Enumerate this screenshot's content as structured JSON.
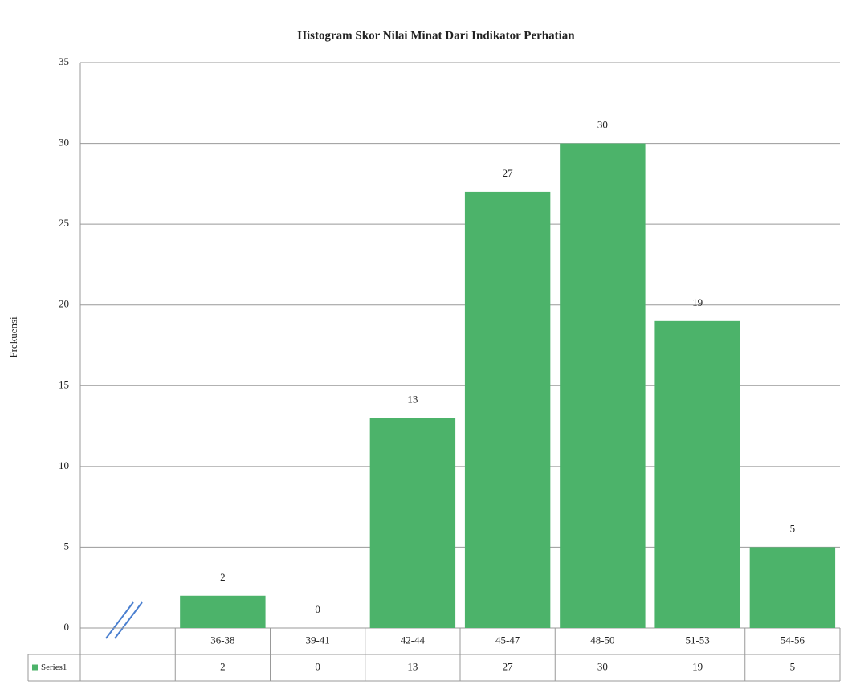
{
  "chart_data": {
    "type": "bar",
    "title": "Histogram Skor Nilai Minat Dari Indikator Perhatian",
    "y_label": "Frekuensi",
    "categories": [
      null,
      "36-38",
      "39-41",
      "42-44",
      "45-47",
      "48-50",
      "51-53",
      "54-56"
    ],
    "series": [
      {
        "name": "Series1",
        "color": "#4cb36a",
        "values": [
          null,
          2,
          0,
          13,
          27,
          30,
          19,
          5
        ]
      }
    ],
    "ylim": [
      0,
      35
    ],
    "yticks": [
      0,
      5,
      10,
      15,
      20,
      25,
      30,
      35
    ],
    "grid": true,
    "data_table": true
  }
}
